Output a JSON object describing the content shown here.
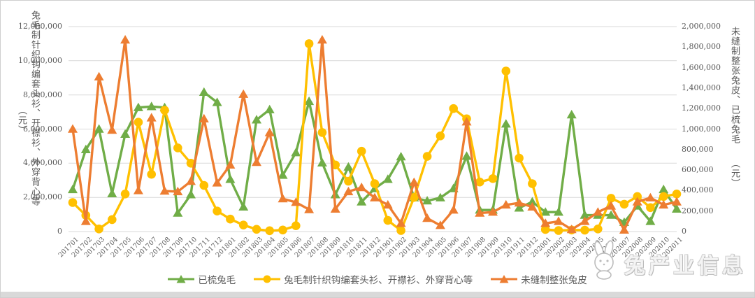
{
  "chart": {
    "left_axis": {
      "title": "兔毛制针织钩编套头衫、开襟衫、外穿背心等",
      "unit": "（元）",
      "ticks": [
        "0",
        "2,000,000",
        "4,000,000",
        "6,000,000",
        "8,000,000",
        "10,000,000",
        "12,000,000"
      ]
    },
    "right_axis": {
      "title": "未缝制整张兔皮、已梳兔毛",
      "unit": "（元）",
      "ticks": [
        "0",
        "200,000",
        "400,000",
        "600,000",
        "800,000",
        "1,000,000",
        "1,200,000",
        "1,400,000",
        "1,600,000",
        "1,800,000",
        "2,000,000"
      ]
    },
    "grid_color": "#d9d9d9",
    "text_color": "#595959"
  },
  "chart_data": {
    "type": "line",
    "x": [
      "201701",
      "201702",
      "201703",
      "201704",
      "201705",
      "201706",
      "201707",
      "201708",
      "201709",
      "201710",
      "201711",
      "201712",
      "201801",
      "201802",
      "201803",
      "201804",
      "201805",
      "201806",
      "201807",
      "201808",
      "201809",
      "201810",
      "201811",
      "201812",
      "201901",
      "201902",
      "201903",
      "201904",
      "201905",
      "201906",
      "201907",
      "201908",
      "201909",
      "201910",
      "201911",
      "201912",
      "202001",
      "202002",
      "202003",
      "202004",
      "202005",
      "202006",
      "202007",
      "202008",
      "202009",
      "202010",
      "202011"
    ],
    "left_ylim": [
      0,
      12000000
    ],
    "right_ylim": [
      0,
      2000000
    ],
    "grid": true,
    "legend_position": "bottom",
    "series": [
      {
        "key": "combed-rabbit-hair",
        "name": "已梳兔毛",
        "axis": "right",
        "color": "#70AD47",
        "marker": "triangle",
        "values": [
          410000,
          800000,
          1000000,
          370000,
          950000,
          1210000,
          1220000,
          1210000,
          180000,
          360000,
          1360000,
          1260000,
          510000,
          240000,
          1090000,
          1190000,
          550000,
          770000,
          1270000,
          670000,
          360000,
          630000,
          290000,
          420000,
          510000,
          730000,
          330000,
          300000,
          330000,
          420000,
          735000,
          210000,
          210000,
          1050000,
          230000,
          290000,
          190000,
          190000,
          1140000,
          160000,
          160000,
          160000,
          90000,
          250000,
          100000,
          410000,
          220000
        ]
      },
      {
        "key": "rabbit-hair-knitwear",
        "name": "兔毛制针织钩编套头衫、开襟衫、外穿背心等",
        "axis": "left",
        "color": "#FFC000",
        "marker": "circle",
        "values": [
          1700000,
          950000,
          150000,
          700000,
          2200000,
          6400000,
          3350000,
          7100000,
          4900000,
          4000000,
          2700000,
          1200000,
          730000,
          380000,
          130000,
          50000,
          90000,
          340000,
          11000000,
          5800000,
          3900000,
          2950000,
          4700000,
          2800000,
          650000,
          60000,
          2000000,
          4400000,
          5600000,
          7200000,
          6600000,
          2900000,
          3100000,
          9400000,
          4300000,
          2800000,
          120000,
          60000,
          90000,
          80000,
          150000,
          1950000,
          1600000,
          2050000,
          1400000,
          2050000,
          2200000
        ]
      },
      {
        "key": "raw-rabbit-skin",
        "name": "未缝制整张兔皮",
        "axis": "right",
        "color": "#ED7D31",
        "marker": "triangle",
        "values": [
          1000000,
          100000,
          1510000,
          990000,
          1870000,
          400000,
          1110000,
          395000,
          390000,
          490000,
          1100000,
          475000,
          650000,
          1340000,
          675000,
          965000,
          320000,
          285000,
          215000,
          1870000,
          220000,
          390000,
          430000,
          330000,
          260000,
          80000,
          480000,
          130000,
          60000,
          210000,
          1070000,
          180000,
          190000,
          260000,
          280000,
          240000,
          80000,
          100000,
          20000,
          100000,
          190000,
          250000,
          15000,
          290000,
          330000,
          260000,
          290000
        ]
      }
    ]
  },
  "watermark": {
    "text": "兔产业信息"
  }
}
